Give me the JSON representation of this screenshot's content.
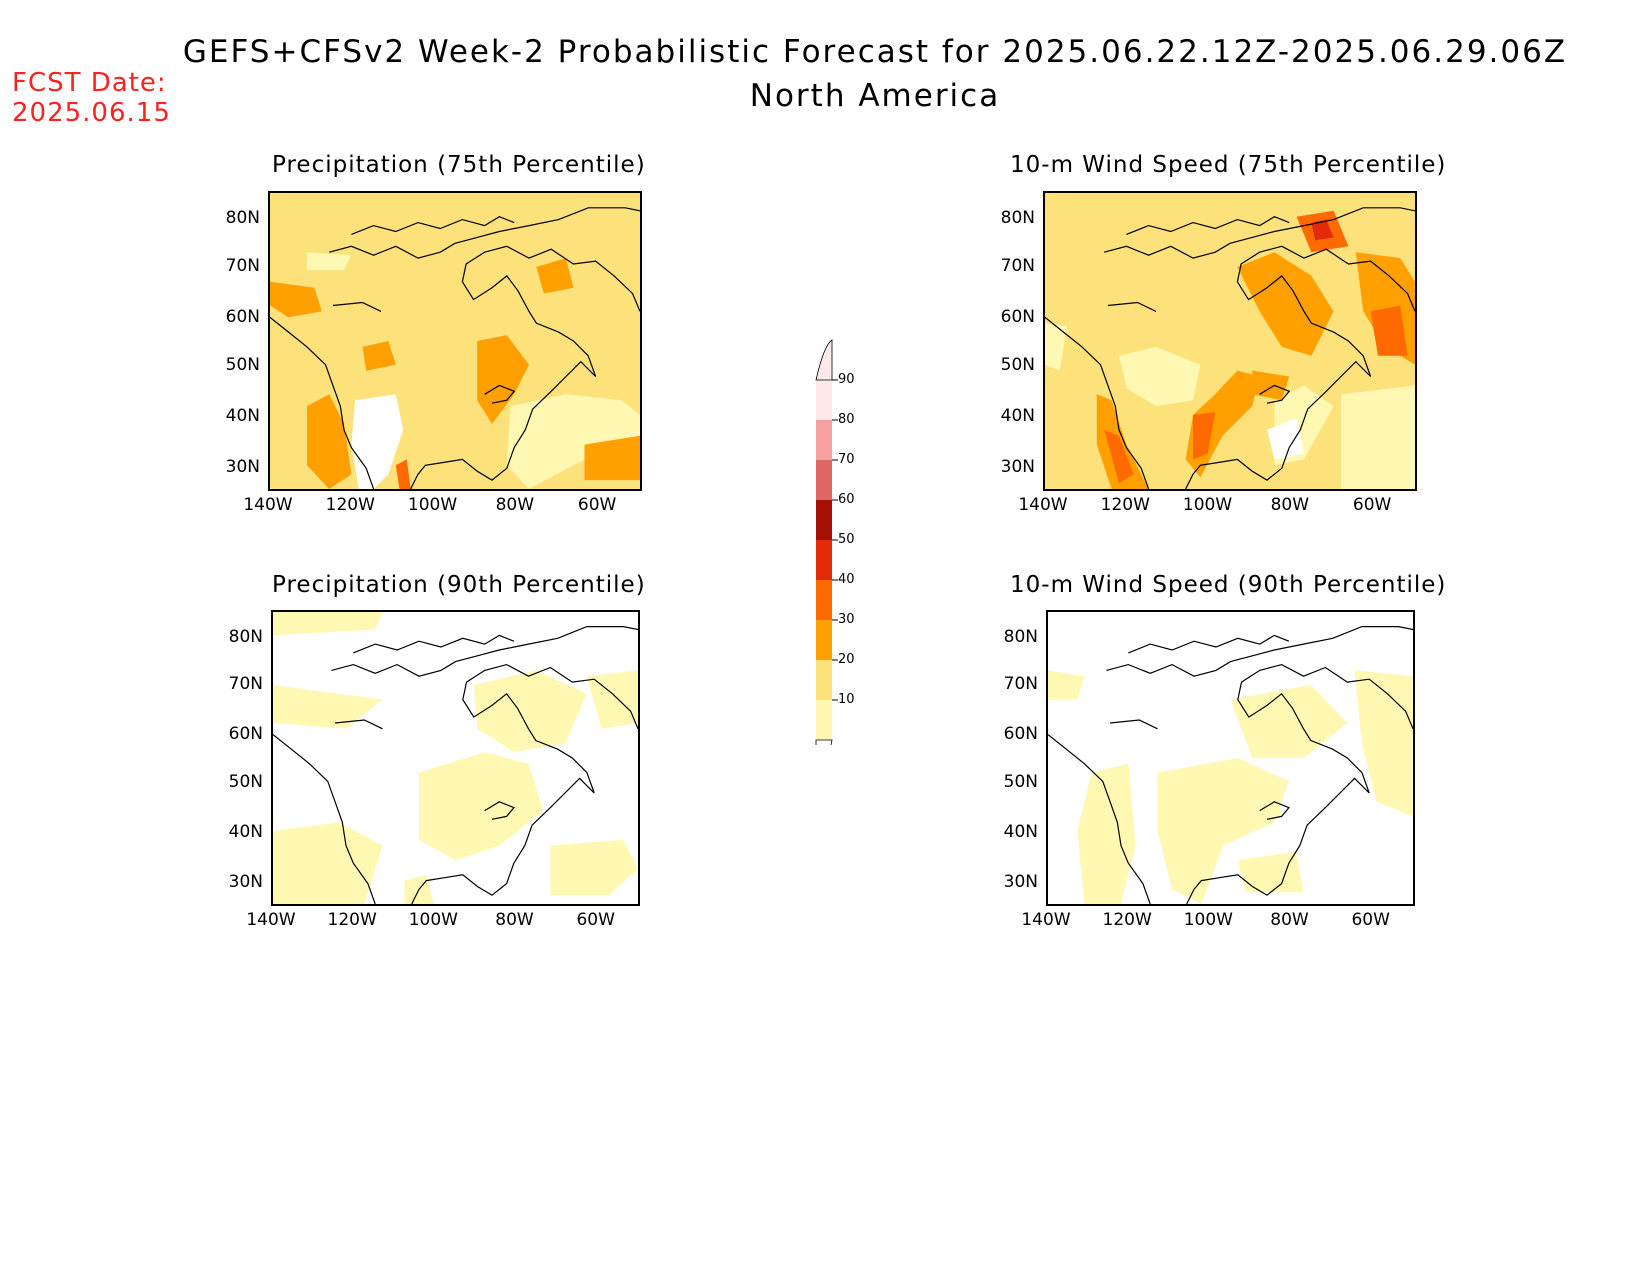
{
  "header": {
    "title": "GEFS+CFSv2 Week-2 Probabilistic Forecast for 2025.06.22.12Z-2025.06.29.06Z",
    "subtitle": "North America",
    "fcst_label": "FCST Date:",
    "fcst_value": "2025.06.15"
  },
  "panels": [
    {
      "id": "precip-75",
      "title": "Precipitation (75th Percentile)"
    },
    {
      "id": "wind-75",
      "title": "10-m Wind Speed (75th Percentile)"
    },
    {
      "id": "precip-90",
      "title": "Precipitation (90th Percentile)"
    },
    {
      "id": "wind-90",
      "title": "10-m Wind Speed (90th Percentile)"
    }
  ],
  "axes": {
    "lat_ticks": [
      "80N",
      "70N",
      "60N",
      "50N",
      "40N",
      "30N"
    ],
    "lon_ticks": [
      "140W",
      "120W",
      "100W",
      "80W",
      "60W"
    ]
  },
  "colorbar": {
    "labels": [
      "90",
      "80",
      "70",
      "60",
      "50",
      "40",
      "30",
      "20",
      "10"
    ],
    "colors": [
      "#fde9ea",
      "#f4a0a0",
      "#e06666",
      "#a50f05",
      "#e32b0a",
      "#ff6a00",
      "#ffa000",
      "#fde17a",
      "#fff8b2"
    ]
  },
  "legend_colors": {
    "none": "#ffffff",
    "c10": "#fff8b2",
    "c20": "#fde17a",
    "c30": "#ffa000",
    "c40": "#ff6a00",
    "c50": "#e32b0a",
    "c60": "#a50f05"
  }
}
